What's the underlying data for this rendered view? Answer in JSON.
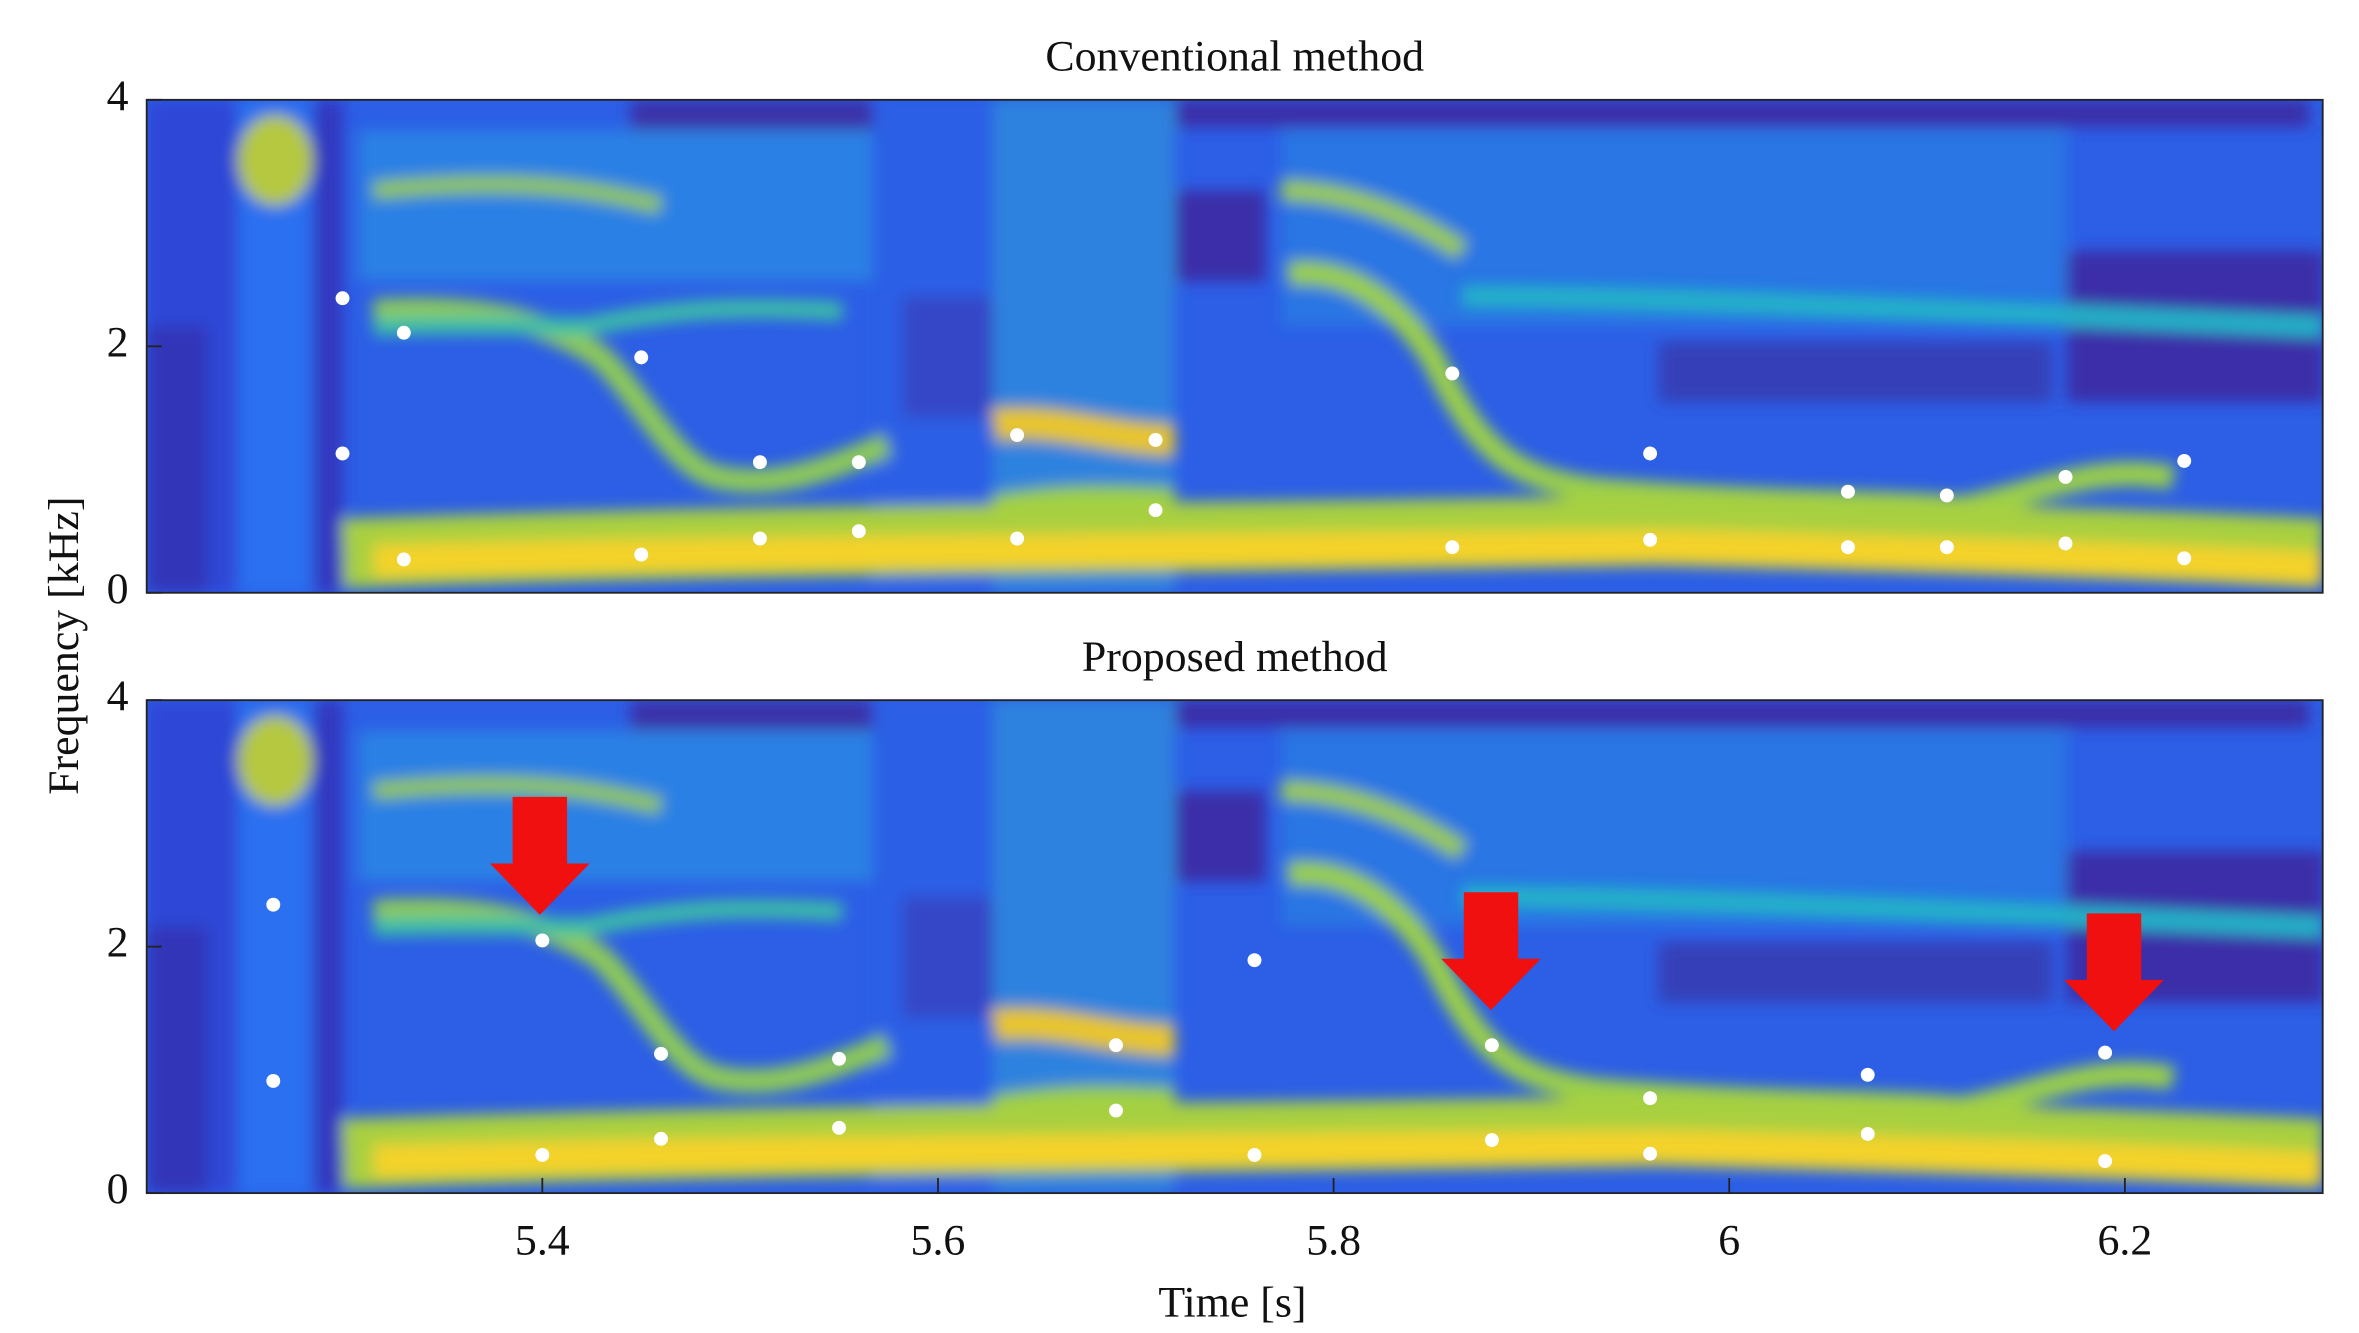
{
  "chart_data": [
    {
      "type": "scatter",
      "title": "Conventional method",
      "ylabel": "Frequency [kHz]",
      "xlim": [
        5.2,
        6.3
      ],
      "ylim": [
        0,
        4
      ],
      "yticks": [
        0,
        2,
        4
      ],
      "series": [
        {
          "color": "#ffffff",
          "x": [
            5.299,
            5.299,
            5.33,
            5.33,
            5.45,
            5.45,
            5.51,
            5.51,
            5.56,
            5.56,
            5.64,
            5.64,
            5.71,
            5.71,
            5.86,
            5.86,
            5.96,
            5.96,
            6.06,
            6.06,
            6.11,
            6.11,
            6.17,
            6.17,
            6.23,
            6.23
          ],
          "values": [
            2.39,
            1.13,
            2.11,
            0.27,
            1.91,
            0.31,
            1.06,
            0.44,
            1.06,
            0.5,
            1.28,
            0.44,
            1.24,
            0.67,
            1.78,
            0.37,
            1.13,
            0.43,
            0.82,
            0.37,
            0.79,
            0.37,
            0.94,
            0.4,
            1.07,
            0.28
          ]
        }
      ]
    },
    {
      "type": "scatter",
      "title": "Proposed method",
      "xlabel": "Time [s]",
      "xlim": [
        5.2,
        6.3
      ],
      "ylim": [
        0,
        4
      ],
      "xticks": [
        5.4,
        5.6,
        5.8,
        6,
        6.2
      ],
      "yticks": [
        0,
        2,
        4
      ],
      "series": [
        {
          "color": "#ffffff",
          "x": [
            5.264,
            5.264,
            5.4,
            5.4,
            5.46,
            5.46,
            5.55,
            5.55,
            5.69,
            5.69,
            5.76,
            5.76,
            5.88,
            5.88,
            5.96,
            5.96,
            6.07,
            6.07,
            6.19,
            6.19
          ],
          "values": [
            2.34,
            0.91,
            2.05,
            0.31,
            1.13,
            0.44,
            1.09,
            0.53,
            1.2,
            0.67,
            1.89,
            0.31,
            1.2,
            0.43,
            0.77,
            0.32,
            0.96,
            0.48,
            1.14,
            0.26
          ]
        }
      ]
    }
  ]
}
